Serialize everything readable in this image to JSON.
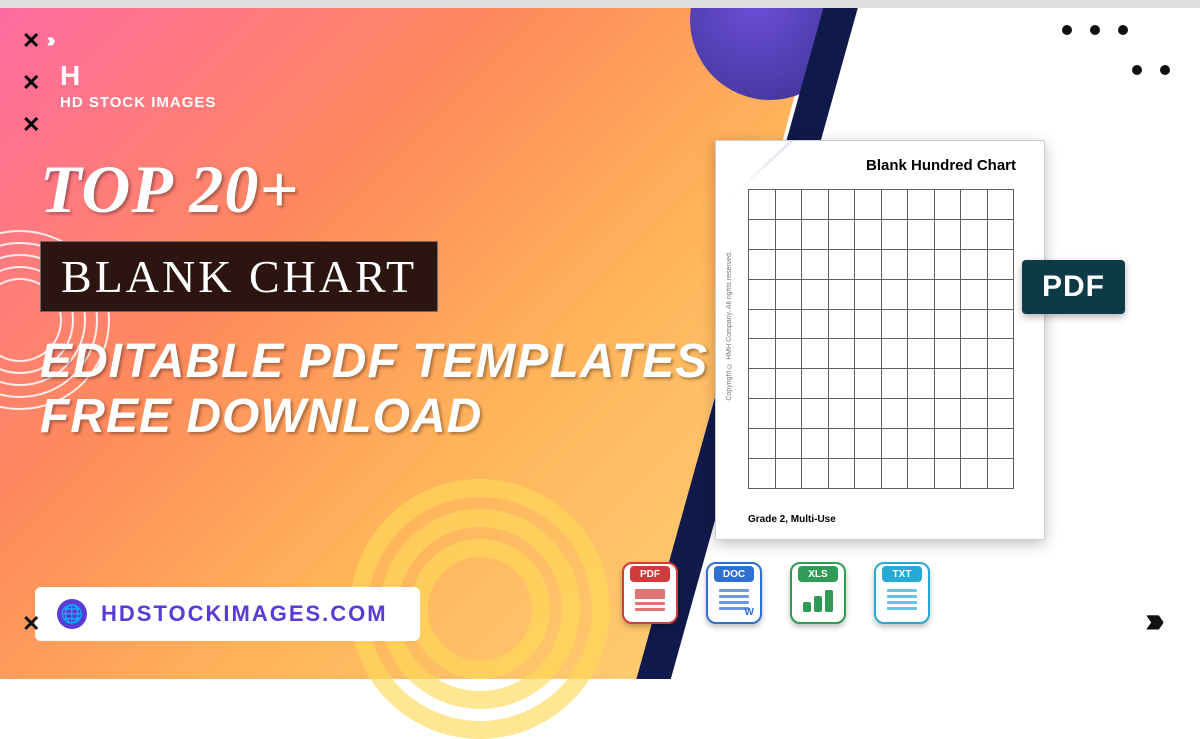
{
  "brand": {
    "logo_letter": "H",
    "logo_text": "HD STOCK IMAGES"
  },
  "headline": {
    "line1": "TOP 20+",
    "box": "BLANK CHART",
    "line3a": "EDITABLE PDF TEMPLATES",
    "line3b": "FREE DOWNLOAD"
  },
  "url_bar": {
    "text": "HDSTOCKIMAGES.COM"
  },
  "preview": {
    "title": "Blank Hundred Chart",
    "footer": "Grade 2, Multi-Use",
    "side_note": "Copyright © HMH Company. All rights reserved.",
    "grid_rows": 10,
    "grid_cols": 10,
    "pdf_tag": "PDF"
  },
  "file_icons": [
    {
      "type": "pdf",
      "label": "PDF"
    },
    {
      "type": "doc",
      "label": "DOC"
    },
    {
      "type": "xls",
      "label": "XLS"
    },
    {
      "type": "txt",
      "label": "TXT"
    }
  ],
  "colors": {
    "gradient_from": "#ff6aa2",
    "gradient_to": "#ffd47a",
    "navy": "#0f1a4a",
    "purple": "#5a3bd6",
    "pdf_tag_bg": "#0e3a47"
  }
}
